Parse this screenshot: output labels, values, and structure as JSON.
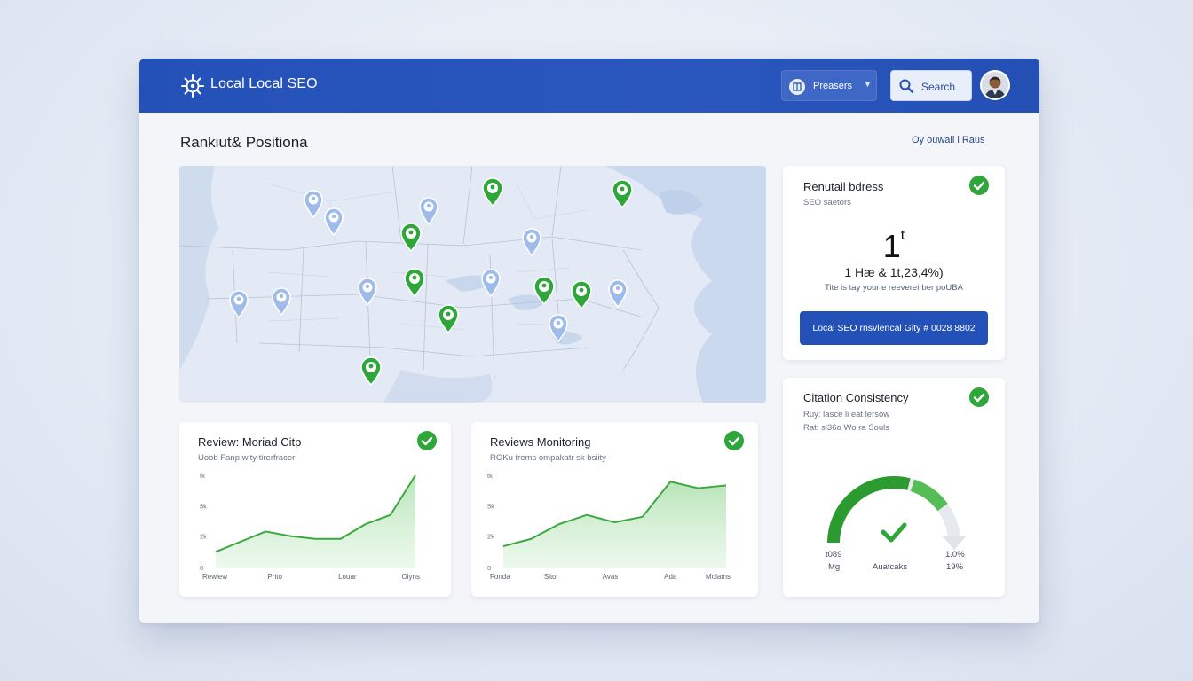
{
  "app": {
    "title": "Local Local SEO",
    "dropdown_label": "Preasers",
    "search_label": "Search"
  },
  "main": {
    "section_title": "Rankiut& Positiona",
    "overview_link": "Oy ouwail l Raus"
  },
  "map": {
    "markers": [
      {
        "type": "blue"
      },
      {
        "type": "blue"
      },
      {
        "type": "blue"
      },
      {
        "type": "green"
      },
      {
        "type": "green"
      },
      {
        "type": "green"
      },
      {
        "type": "blue"
      },
      {
        "type": "blue"
      },
      {
        "type": "blue"
      },
      {
        "type": "blue"
      },
      {
        "type": "green"
      },
      {
        "type": "blue"
      },
      {
        "type": "green"
      },
      {
        "type": "blue"
      },
      {
        "type": "green"
      },
      {
        "type": "green"
      },
      {
        "type": "blue"
      },
      {
        "type": "green"
      }
    ]
  },
  "ranking_card": {
    "title": "Renutail bdress",
    "subtitle": "SEO saetors",
    "big_value": "1",
    "big_suffix": "t",
    "stat_line": "1 Hæ & 1t,23,4%)",
    "note": "Tite is tay your e reevereirber poUBA",
    "button": "Local SEO rnsvlencal Gity # 0028 8802"
  },
  "review_card_1": {
    "title": "Review: Moriad Citp",
    "subtitle": "Uoob Fanp wity tirerfracer",
    "y_ticks": [
      "tk",
      "5k",
      "2k",
      "0"
    ],
    "x_labels": [
      "Rewiew",
      "Prito",
      "Louar",
      "Olyns"
    ]
  },
  "review_card_2": {
    "title": "Reviews Monitoring",
    "subtitle": "ROKu frems ompakatr sk bsiity",
    "y_ticks": [
      "tk",
      "5k",
      "2k",
      "0"
    ],
    "x_labels": [
      "Fonda",
      "Sito",
      "Avas",
      "Ada",
      "Molams"
    ]
  },
  "citation_card": {
    "title": "Citation Consistency",
    "line1": "Ruy: lasce li eat lersow",
    "line2": "Rat: sl36o Wo ra Souls",
    "left_value": "t089",
    "left_label": "Mg",
    "center_label": "Auatcaks",
    "right_value": "1.0%",
    "right_label": "19%"
  },
  "chart_data": [
    {
      "type": "area",
      "title": "Review: Moriad Citp",
      "y_ticks": [
        "tk",
        "5k",
        "2k",
        "0"
      ],
      "x_labels": [
        "Rewiew",
        "Prito",
        "Louar",
        "Olyns"
      ],
      "ylim": [
        0,
        100
      ],
      "series": [
        {
          "values": [
            17,
            28,
            39,
            34,
            31,
            31,
            47,
            57,
            100
          ]
        }
      ],
      "color": "#3aa83f"
    },
    {
      "type": "area",
      "title": "Reviews Monitoring",
      "y_ticks": [
        "tk",
        "5k",
        "2k",
        "0"
      ],
      "x_labels": [
        "Fonda",
        "Sito",
        "Avas",
        "Ada",
        "Molams"
      ],
      "ylim": [
        0,
        100
      ],
      "series": [
        {
          "values": [
            23,
            31,
            47,
            57,
            49,
            55,
            93,
            86,
            89
          ]
        }
      ],
      "color": "#3aa83f"
    },
    {
      "type": "gauge",
      "title": "Citation Consistency",
      "value": 0.8,
      "color": "#2b9b2f"
    }
  ],
  "colors": {
    "brand": "#2451b8",
    "accent_green": "#3aa83f",
    "marker_blue": "#8cb0ea"
  }
}
